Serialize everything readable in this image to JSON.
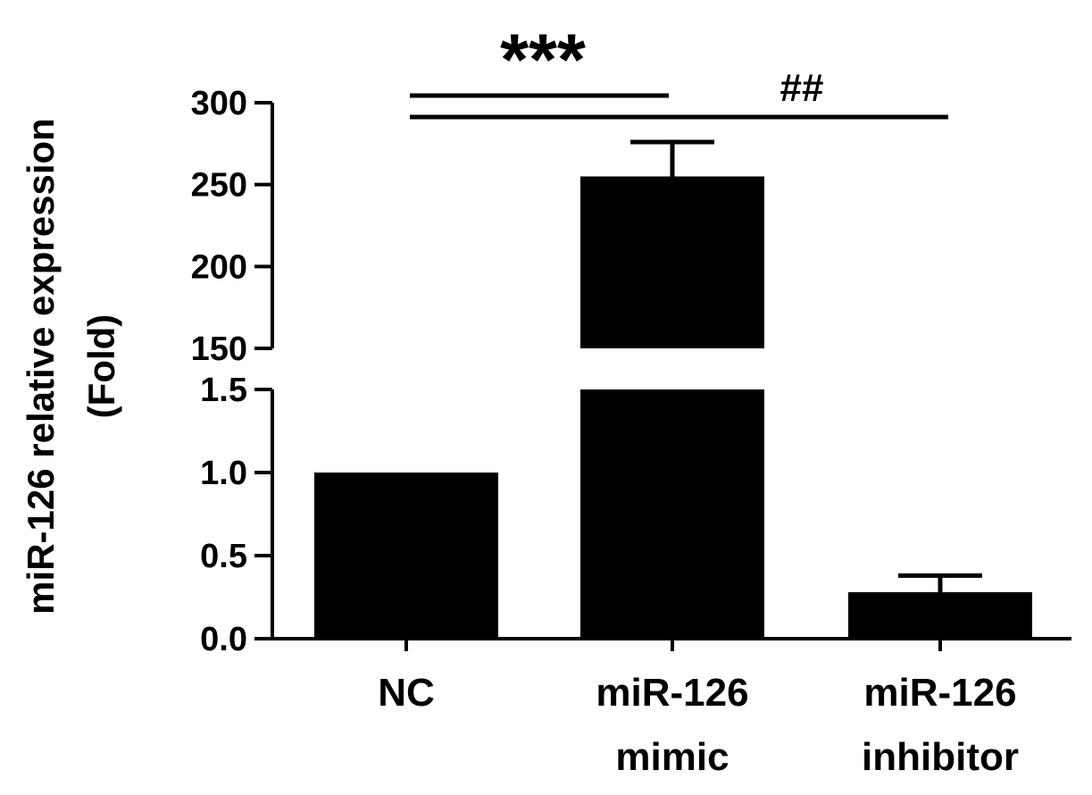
{
  "chart_data": {
    "type": "bar",
    "ylabel_lines": [
      "miR-126 relative expression",
      "(Fold)"
    ],
    "categories": [
      {
        "lines": [
          "NC"
        ]
      },
      {
        "lines": [
          "miR-126",
          "mimic"
        ]
      },
      {
        "lines": [
          "miR-126",
          "inhibitor"
        ]
      }
    ],
    "values": [
      1.0,
      255,
      0.28
    ],
    "errors": [
      0,
      21,
      0.1
    ],
    "y_axis_broken": true,
    "lower_segment": {
      "range": [
        0,
        1.5
      ],
      "ticks": [
        0.0,
        0.5,
        1.0,
        1.5
      ],
      "tick_labels": [
        "0.0",
        "0.5",
        "1.0",
        "1.5"
      ]
    },
    "upper_segment": {
      "range": [
        150,
        300
      ],
      "ticks": [
        150,
        200,
        250,
        300
      ],
      "tick_labels": [
        "150",
        "200",
        "250",
        "300"
      ]
    },
    "bar_color": "#000000",
    "significance": [
      {
        "label": "***",
        "from": 0,
        "to": 1
      },
      {
        "label": "##",
        "from": 0,
        "to": 2
      }
    ]
  }
}
